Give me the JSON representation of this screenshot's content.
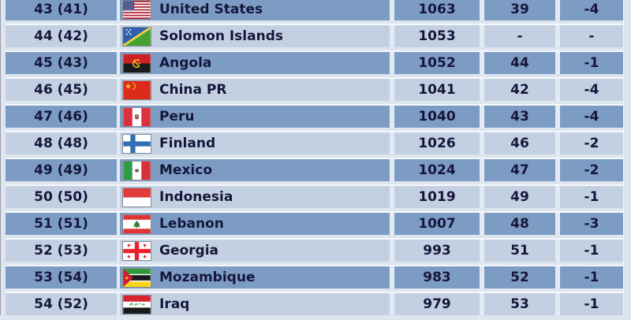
{
  "table": {
    "rows": [
      {
        "rank": "43 (41)",
        "team": "United States",
        "flag": "united-states",
        "rating": "1063",
        "alt_rank": "39",
        "change": "-4"
      },
      {
        "rank": "44 (42)",
        "team": "Solomon Islands",
        "flag": "solomon-islands",
        "rating": "1053",
        "alt_rank": "-",
        "change": "-"
      },
      {
        "rank": "45 (43)",
        "team": "Angola",
        "flag": "angola",
        "rating": "1052",
        "alt_rank": "44",
        "change": "-1"
      },
      {
        "rank": "46 (45)",
        "team": "China PR",
        "flag": "china",
        "rating": "1041",
        "alt_rank": "42",
        "change": "-4"
      },
      {
        "rank": "47 (46)",
        "team": "Peru",
        "flag": "peru",
        "rating": "1040",
        "alt_rank": "43",
        "change": "-4"
      },
      {
        "rank": "48 (48)",
        "team": "Finland",
        "flag": "finland",
        "rating": "1026",
        "alt_rank": "46",
        "change": "-2"
      },
      {
        "rank": "49 (49)",
        "team": "Mexico",
        "flag": "mexico",
        "rating": "1024",
        "alt_rank": "47",
        "change": "-2"
      },
      {
        "rank": "50 (50)",
        "team": "Indonesia",
        "flag": "indonesia",
        "rating": "1019",
        "alt_rank": "49",
        "change": "-1"
      },
      {
        "rank": "51 (51)",
        "team": "Lebanon",
        "flag": "lebanon",
        "rating": "1007",
        "alt_rank": "48",
        "change": "-3"
      },
      {
        "rank": "52 (53)",
        "team": "Georgia",
        "flag": "georgia",
        "rating": "993",
        "alt_rank": "51",
        "change": "-1"
      },
      {
        "rank": "53 (54)",
        "team": "Mozambique",
        "flag": "mozambique",
        "rating": "983",
        "alt_rank": "52",
        "change": "-1"
      },
      {
        "rank": "54 (52)",
        "team": "Iraq",
        "flag": "iraq",
        "rating": "979",
        "alt_rank": "53",
        "change": "-1"
      }
    ]
  },
  "colors": {
    "row_dark": "#7d9cc4",
    "row_light": "#c3d0e2",
    "gap_background": "#dde5ef",
    "gap_highlight": "#f4f8fc",
    "text": "#16163a",
    "edge": "#dfe5ee"
  }
}
